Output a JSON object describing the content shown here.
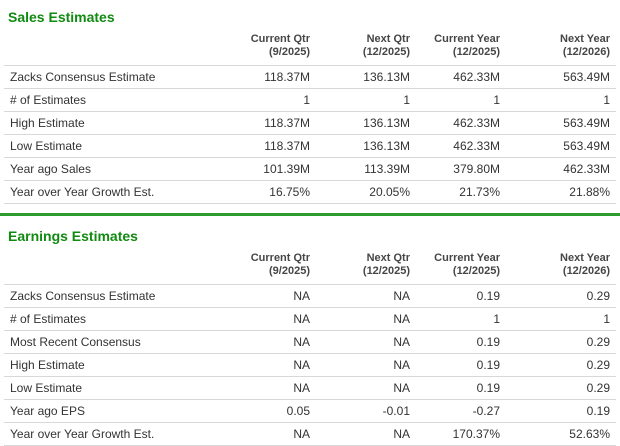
{
  "theme": {
    "title_green": "#118a11",
    "divider_green": "#2e9b2e",
    "row_border": "#d8d8d8",
    "body_text": "#333333",
    "header_text": "#464646",
    "background": "#ffffff"
  },
  "tables": [
    {
      "title": "Sales Estimates",
      "columns": [
        {
          "label": "Current Qtr",
          "period": "(9/2025)"
        },
        {
          "label": "Next Qtr",
          "period": "(12/2025)"
        },
        {
          "label": "Current Year",
          "period": "(12/2025)"
        },
        {
          "label": "Next Year",
          "period": "(12/2026)"
        }
      ],
      "rows": [
        {
          "label": "Zacks Consensus Estimate",
          "values": [
            "118.37M",
            "136.13M",
            "462.33M",
            "563.49M"
          ]
        },
        {
          "label": "# of Estimates",
          "values": [
            "1",
            "1",
            "1",
            "1"
          ]
        },
        {
          "label": "High Estimate",
          "values": [
            "118.37M",
            "136.13M",
            "462.33M",
            "563.49M"
          ]
        },
        {
          "label": "Low Estimate",
          "values": [
            "118.37M",
            "136.13M",
            "462.33M",
            "563.49M"
          ]
        },
        {
          "label": "Year ago Sales",
          "values": [
            "101.39M",
            "113.39M",
            "379.80M",
            "462.33M"
          ]
        },
        {
          "label": "Year over Year Growth Est.",
          "values": [
            "16.75%",
            "20.05%",
            "21.73%",
            "21.88%"
          ]
        }
      ]
    },
    {
      "title": "Earnings Estimates",
      "columns": [
        {
          "label": "Current Qtr",
          "period": "(9/2025)"
        },
        {
          "label": "Next Qtr",
          "period": "(12/2025)"
        },
        {
          "label": "Current Year",
          "period": "(12/2025)"
        },
        {
          "label": "Next Year",
          "period": "(12/2026)"
        }
      ],
      "rows": [
        {
          "label": "Zacks Consensus Estimate",
          "values": [
            "NA",
            "NA",
            "0.19",
            "0.29"
          ]
        },
        {
          "label": "# of Estimates",
          "values": [
            "NA",
            "NA",
            "1",
            "1"
          ]
        },
        {
          "label": "Most Recent Consensus",
          "values": [
            "NA",
            "NA",
            "0.19",
            "0.29"
          ]
        },
        {
          "label": "High Estimate",
          "values": [
            "NA",
            "NA",
            "0.19",
            "0.29"
          ]
        },
        {
          "label": "Low Estimate",
          "values": [
            "NA",
            "NA",
            "0.19",
            "0.29"
          ]
        },
        {
          "label": "Year ago EPS",
          "values": [
            "0.05",
            "-0.01",
            "-0.27",
            "0.19"
          ]
        },
        {
          "label": "Year over Year Growth Est.",
          "values": [
            "NA",
            "NA",
            "170.37%",
            "52.63%"
          ]
        }
      ]
    }
  ]
}
